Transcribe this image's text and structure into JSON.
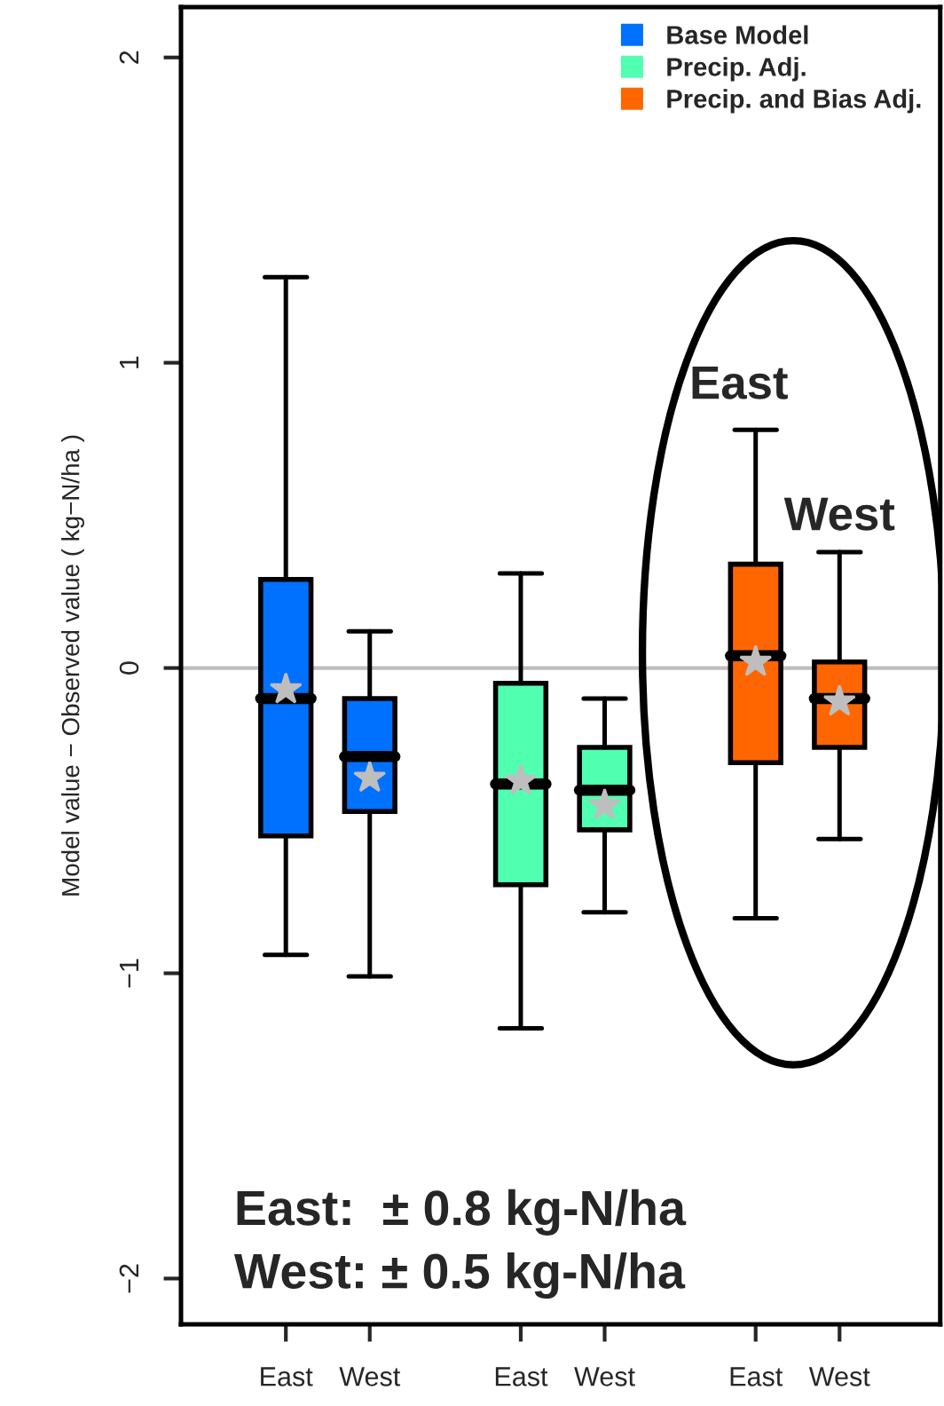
{
  "chart_data": {
    "type": "box",
    "ylabel": "Model value − Observed value ( kg−N/ha )",
    "categories": [
      "East",
      "West",
      "East",
      "West",
      "East",
      "West"
    ],
    "series": [
      {
        "name": "Base Model",
        "color": "#0070ff",
        "boxes": [
          {
            "low": -0.94,
            "q1": -0.55,
            "median": -0.1,
            "q3": 0.29,
            "high": 1.28,
            "mean": -0.07
          },
          {
            "low": -1.01,
            "q1": -0.47,
            "median": -0.29,
            "q3": -0.1,
            "high": 0.12,
            "mean": -0.36
          },
          null,
          null,
          null,
          null
        ]
      },
      {
        "name": "Precip. Adj.",
        "color": "#50ffb0",
        "boxes": [
          null,
          null,
          {
            "low": -1.18,
            "q1": -0.71,
            "median": -0.38,
            "q3": -0.05,
            "high": 0.31,
            "mean": -0.37
          },
          {
            "low": -0.8,
            "q1": -0.53,
            "median": -0.4,
            "q3": -0.26,
            "high": -0.1,
            "mean": -0.45
          },
          null,
          null
        ]
      },
      {
        "name": "Precip. and Bias Adj.",
        "color": "#ff6600",
        "boxes": [
          null,
          null,
          null,
          null,
          {
            "low": -0.82,
            "q1": -0.31,
            "median": 0.04,
            "q3": 0.34,
            "high": 0.78,
            "mean": 0.02
          },
          {
            "low": -0.56,
            "q1": -0.26,
            "median": -0.1,
            "q3": 0.02,
            "high": 0.38,
            "mean": -0.11
          }
        ]
      }
    ],
    "ylim": [
      -2.15,
      2.165
    ],
    "yticks": [
      {
        "value": -2,
        "label": "−2"
      },
      {
        "value": -1,
        "label": "−1"
      },
      0,
      1,
      2
    ],
    "ref_lines": [
      {
        "axis": "y",
        "value": 0,
        "color": "#bebebe"
      }
    ],
    "annotations": [
      "East",
      "West",
      "East:  ± 0.8 kg-N/ha",
      "West: ± 0.5 kg-N/ha"
    ],
    "legend": "top right",
    "marker": "square",
    "grid": false
  }
}
